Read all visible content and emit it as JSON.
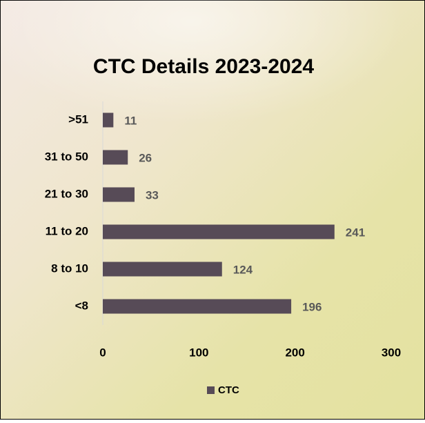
{
  "chart_data": {
    "type": "bar",
    "orientation": "horizontal",
    "title": "CTC Details 2023-2024",
    "categories": [
      ">51",
      "31 to 50",
      "21 to 30",
      "11 to 20",
      "8 to 10",
      "<8"
    ],
    "series": [
      {
        "name": "CTC",
        "color": "#574b57",
        "values": [
          11,
          26,
          33,
          241,
          124,
          196
        ]
      }
    ],
    "xlim": [
      0,
      300
    ],
    "xticks": [
      0,
      100,
      200,
      300
    ],
    "grid": false,
    "legend": "bottom"
  }
}
